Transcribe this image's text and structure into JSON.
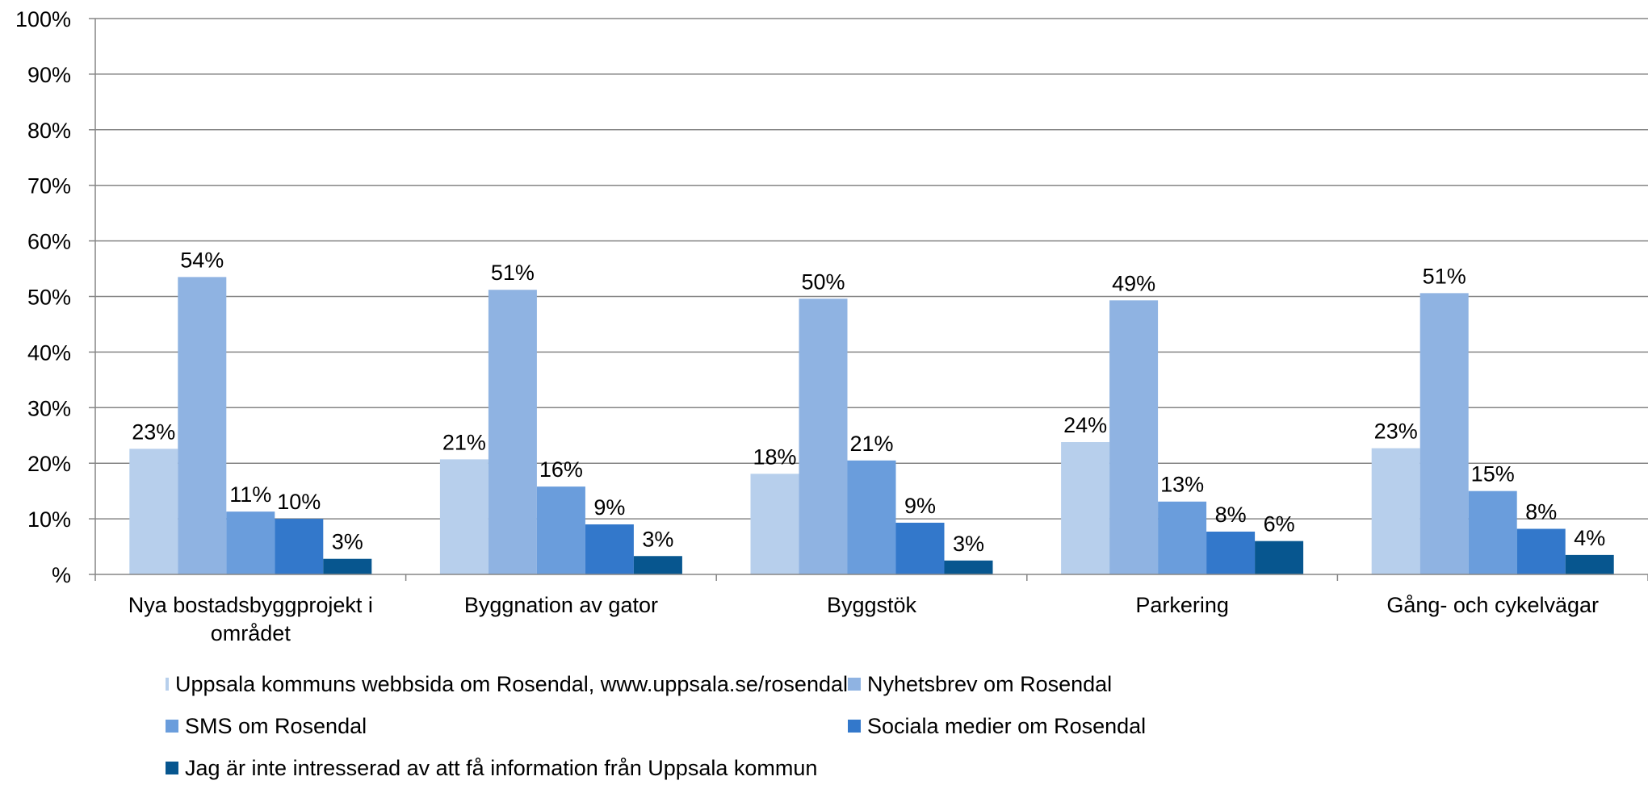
{
  "chart_data": {
    "type": "bar",
    "ylim": [
      0,
      100
    ],
    "yticks": [
      "%",
      "10%",
      "20%",
      "30%",
      "40%",
      "50%",
      "60%",
      "70%",
      "80%",
      "90%",
      "100%"
    ],
    "grid": true,
    "legend_position": "bottom",
    "categories": [
      "Nya bostadsbyggprojekt i området",
      "Byggnation av gator",
      "Byggstök",
      "Parkering",
      "Gång- och cykelvägar"
    ],
    "category_lines": [
      [
        "Nya bostadsbyggprojekt i",
        "området"
      ],
      [
        "Byggnation av gator"
      ],
      [
        "Byggstök"
      ],
      [
        "Parkering"
      ],
      [
        "Gång- och cykelvägar"
      ]
    ],
    "series": [
      {
        "name": "Uppsala kommuns webbsida om Rosendal, www.uppsala.se/rosendal",
        "color": "#b7cfec",
        "values": [
          22.6,
          20.7,
          18.1,
          23.8,
          22.7
        ],
        "labels": [
          "23%",
          "21%",
          "18%",
          "24%",
          "23%"
        ]
      },
      {
        "name": "Nyhetsbrev om Rosendal",
        "color": "#8fb3e2",
        "values": [
          53.5,
          51.2,
          49.6,
          49.3,
          50.6
        ],
        "labels": [
          "54%",
          "51%",
          "50%",
          "49%",
          "51%"
        ]
      },
      {
        "name": "SMS om Rosendal",
        "color": "#6a9ddc",
        "values": [
          11.3,
          15.8,
          20.5,
          13.1,
          15.0
        ],
        "labels": [
          "11%",
          "16%",
          "21%",
          "13%",
          "15%"
        ]
      },
      {
        "name": "Sociala medier om Rosendal",
        "color": "#3378cb",
        "values": [
          10.0,
          9.0,
          9.3,
          7.7,
          8.2
        ],
        "labels": [
          "10%",
          "9%",
          "9%",
          "8%",
          "8%"
        ]
      },
      {
        "name": "Jag är inte intresserad av att få information från Uppsala kommun",
        "color": "#07568f",
        "values": [
          2.8,
          3.3,
          2.5,
          6.0,
          3.5
        ],
        "labels": [
          "3%",
          "3%",
          "3%",
          "6%",
          "4%"
        ]
      }
    ]
  }
}
